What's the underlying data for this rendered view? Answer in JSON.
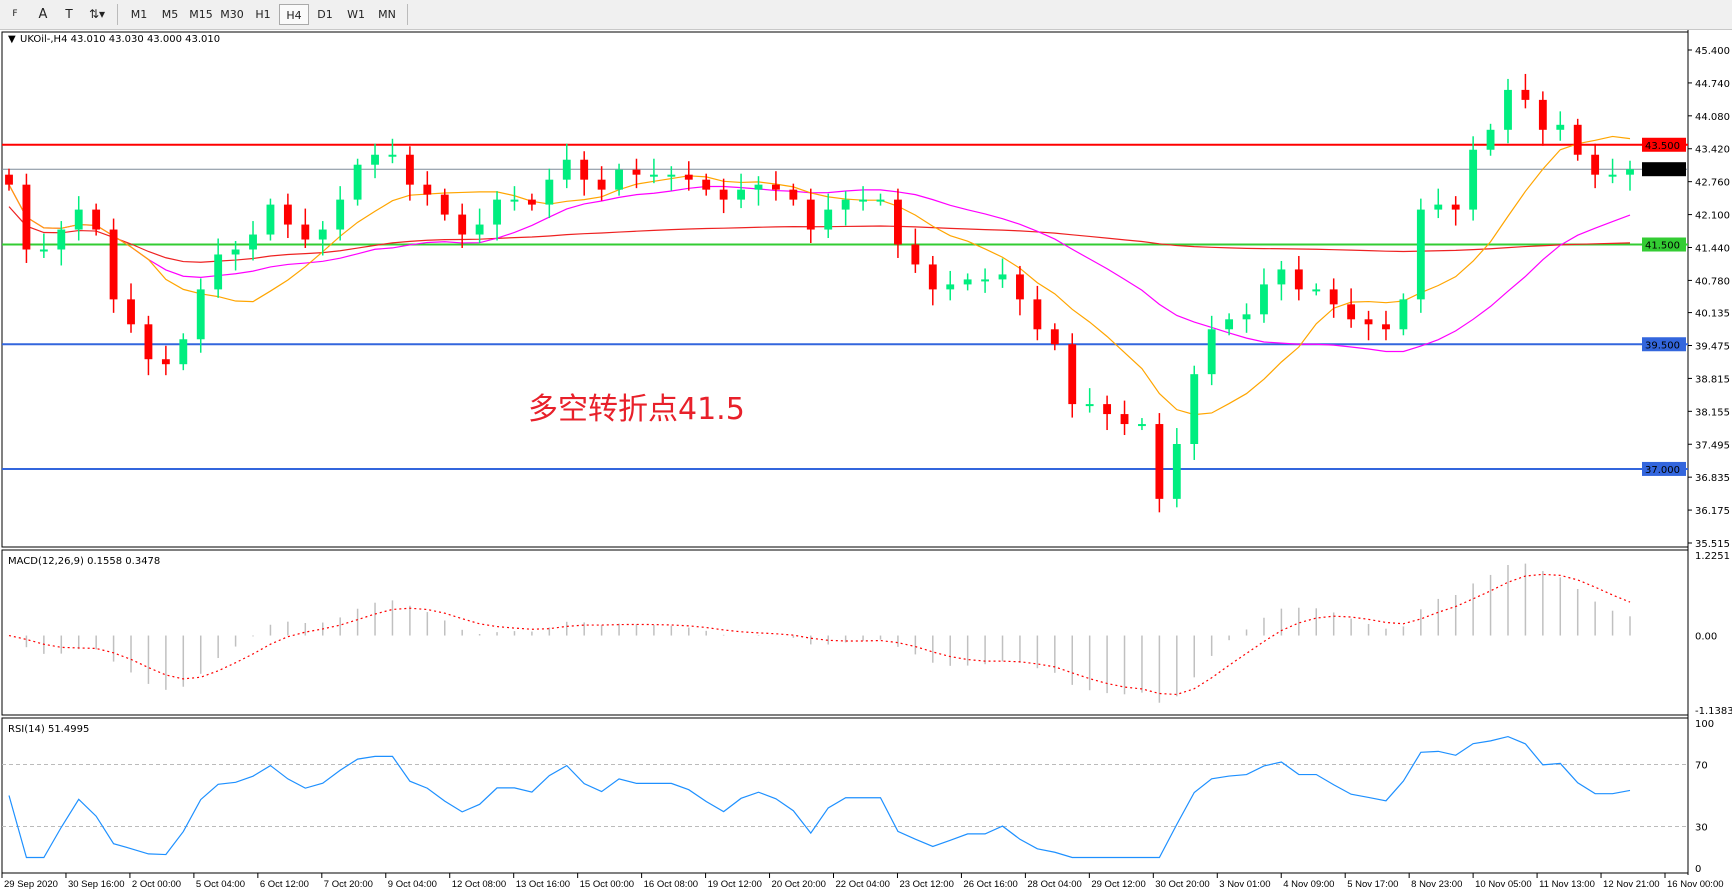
{
  "toolbar": {
    "tools": [
      {
        "icon": "fibonacci-fan-icon",
        "label": "F"
      },
      {
        "icon": "text-icon",
        "label": "A"
      },
      {
        "icon": "text-label-icon",
        "label": "T"
      },
      {
        "icon": "arrows-dropdown-icon",
        "label": "⇅▾"
      }
    ],
    "timeframes": [
      "M1",
      "M5",
      "M15",
      "M30",
      "H1",
      "H4",
      "D1",
      "W1",
      "MN"
    ],
    "active_timeframe": "H4"
  },
  "chart_data": {
    "type": "candlestick",
    "title": "UKOil-,H4  43.010 43.030 43.000 43.010",
    "symbol": "UKOil-",
    "timeframe": "H4",
    "ylim": [
      35.515,
      45.4
    ],
    "y_ticks": [
      "45.400",
      "44.740",
      "44.080",
      "43.420",
      "42.760",
      "42.100",
      "41.440",
      "40.780",
      "40.135",
      "39.475",
      "38.815",
      "38.155",
      "37.495",
      "36.835",
      "36.175",
      "35.515"
    ],
    "x_ticks": [
      "29 Sep 2020",
      "30 Sep 16:00",
      "2 Oct 00:00",
      "5 Oct 04:00",
      "6 Oct 12:00",
      "7 Oct 20:00",
      "9 Oct 04:00",
      "12 Oct 08:00",
      "13 Oct 16:00",
      "15 Oct 00:00",
      "16 Oct 08:00",
      "19 Oct 12:00",
      "20 Oct 20:00",
      "22 Oct 04:00",
      "23 Oct 12:00",
      "26 Oct 16:00",
      "28 Oct 04:00",
      "29 Oct 12:00",
      "30 Oct 20:00",
      "3 Nov 01:00",
      "4 Nov 09:00",
      "5 Nov 17:00",
      "8 Nov 23:00",
      "10 Nov 05:00",
      "11 Nov 13:00",
      "12 Nov 21:00",
      "16 Nov 00:00"
    ],
    "close": [
      42.7,
      41.4,
      41.4,
      41.8,
      42.2,
      41.8,
      40.4,
      39.9,
      39.2,
      39.1,
      39.6,
      40.6,
      41.3,
      41.4,
      41.7,
      42.3,
      41.9,
      41.6,
      41.8,
      42.4,
      43.1,
      43.3,
      43.3,
      42.7,
      42.5,
      42.1,
      41.7,
      41.9,
      42.4,
      42.4,
      42.3,
      42.8,
      43.2,
      42.8,
      42.6,
      43.0,
      42.9,
      42.9,
      42.9,
      42.8,
      42.6,
      42.4,
      42.6,
      42.7,
      42.6,
      42.4,
      41.8,
      42.2,
      42.4,
      42.4,
      42.4,
      41.5,
      41.1,
      40.6,
      40.7,
      40.8,
      40.8,
      40.9,
      40.4,
      39.8,
      39.5,
      38.3,
      38.3,
      38.1,
      37.9,
      37.9,
      36.4,
      37.5,
      38.9,
      39.8,
      40.0,
      40.1,
      40.7,
      41.0,
      40.6,
      40.6,
      40.3,
      40.0,
      39.9,
      39.8,
      40.4,
      42.2,
      42.3,
      42.2,
      43.4,
      43.8,
      44.6,
      44.4,
      43.8,
      43.9,
      43.3,
      42.9,
      42.9,
      43.01
    ],
    "current_price": {
      "value": "43.010",
      "color": "#000000"
    },
    "levels": [
      {
        "value": 43.5,
        "label": "43.500",
        "color": "#ff0000"
      },
      {
        "value": 41.5,
        "label": "41.500",
        "color": "#33cc33"
      },
      {
        "value": 39.5,
        "label": "39.500",
        "color": "#3366dd"
      },
      {
        "value": 37.0,
        "label": "37.000",
        "color": "#3366dd"
      }
    ],
    "colors": {
      "bull": "#00ee7f",
      "bear": "#ff0000",
      "ma_fast": "#ffa500",
      "ma_mid": "#ff00ff",
      "ma_slow": "#ee2222"
    },
    "annotation": "多空转折点41.5"
  },
  "macd": {
    "title": "MACD(12,26,9) 0.1558 0.3478",
    "ylim": [
      -1.1383,
      1.2251
    ],
    "ticks": [
      "1.2251",
      "0.00",
      "-1.1383"
    ],
    "colors": {
      "histogram": "#c0c0c0",
      "signal": "#ff0000"
    }
  },
  "rsi": {
    "title": "RSI(14) 51.4995",
    "ylim": [
      0,
      100
    ],
    "ticks": [
      "100",
      "70",
      "30",
      "0"
    ],
    "levels": [
      70,
      30
    ],
    "color": "#1e90ff"
  }
}
